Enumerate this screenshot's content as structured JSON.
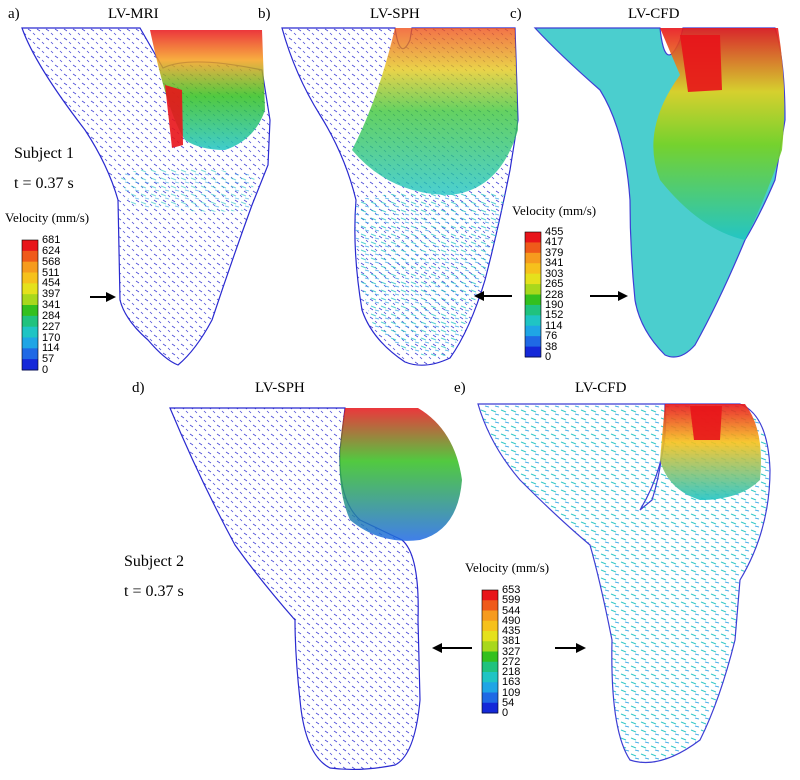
{
  "panels": [
    {
      "label": "a)",
      "title": "LV-MRI"
    },
    {
      "label": "b)",
      "title": "LV-SPH"
    },
    {
      "label": "c)",
      "title": "LV-CFD"
    },
    {
      "label": "d)",
      "title": "LV-SPH"
    },
    {
      "label": "e)",
      "title": "LV-CFD"
    }
  ],
  "subject1": {
    "name": "Subject 1",
    "time": "t = 0.37 s"
  },
  "subject2": {
    "name": "Subject 2",
    "time": "t = 0.37 s"
  },
  "legends": [
    {
      "title": "Velocity (mm/s)",
      "ticks": [
        "681",
        "624",
        "568",
        "511",
        "454",
        "397",
        "341",
        "284",
        "227",
        "170",
        "114",
        "57",
        "0"
      ]
    },
    {
      "title": "Velocity (mm/s)",
      "ticks": [
        "455",
        "417",
        "379",
        "341",
        "303",
        "265",
        "228",
        "190",
        "152",
        "114",
        "76",
        "38",
        "0"
      ]
    },
    {
      "title": "Velocity (mm/s)",
      "ticks": [
        "653",
        "599",
        "544",
        "490",
        "435",
        "381",
        "327",
        "272",
        "218",
        "163",
        "109",
        "54",
        "0"
      ]
    }
  ],
  "colormap": [
    "#e8141a",
    "#ef5a1a",
    "#f69b1e",
    "#f6c11c",
    "#e5e11c",
    "#a8d81c",
    "#33c01e",
    "#20c27e",
    "#1fc4c4",
    "#1fa5e5",
    "#1f69e5",
    "#1428d8"
  ],
  "colors": {
    "outline": "#2a2ad0",
    "arrow": "#000000"
  }
}
